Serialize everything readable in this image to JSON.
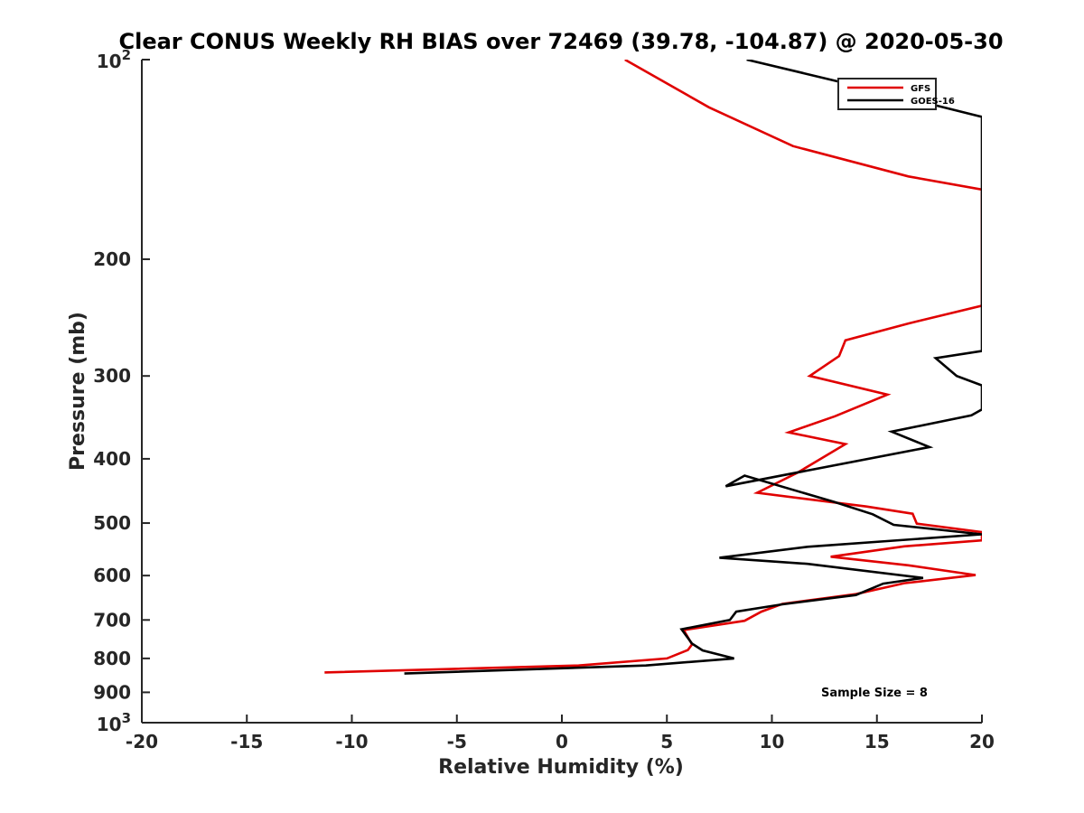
{
  "chart_data": {
    "type": "line",
    "title": "Clear CONUS Weekly RH BIAS over 72469 (39.78, -104.87) @ 2020-05-30",
    "xlabel": "Relative Humidity (%)",
    "ylabel": "Pressure (mb)",
    "xlim": [
      -20,
      20
    ],
    "ylim": [
      100,
      1000
    ],
    "yscale": "log",
    "y_reversed": true,
    "x_ticks": [
      "-20",
      "-15",
      "-10",
      "-5",
      "0",
      "5",
      "10",
      "15",
      "20"
    ],
    "y_ticks": [
      {
        "value": 100,
        "base": "10",
        "exp": "2"
      },
      {
        "value": 200,
        "label": "200"
      },
      {
        "value": 300,
        "label": "300"
      },
      {
        "value": 400,
        "label": "400"
      },
      {
        "value": 500,
        "label": "500"
      },
      {
        "value": 600,
        "label": "600"
      },
      {
        "value": 700,
        "label": "700"
      },
      {
        "value": 800,
        "label": "800"
      },
      {
        "value": 900,
        "label": "900"
      },
      {
        "value": 1000,
        "base": "10",
        "exp": "3"
      }
    ],
    "legend_position": "top-right",
    "grid": false,
    "annotation": "Sample Size = 8",
    "series": [
      {
        "name": "GFS",
        "color": "#e00000",
        "points": [
          [
            3.0,
            100
          ],
          [
            7.0,
            118
          ],
          [
            11.0,
            135
          ],
          [
            16.5,
            150
          ],
          [
            20.0,
            157
          ],
          [
            20.0,
            235
          ],
          [
            16.5,
            250
          ],
          [
            13.5,
            265
          ],
          [
            13.2,
            280
          ],
          [
            11.8,
            300
          ],
          [
            15.5,
            320
          ],
          [
            13.0,
            345
          ],
          [
            10.8,
            365
          ],
          [
            13.5,
            380
          ],
          [
            11.2,
            420
          ],
          [
            9.3,
            450
          ],
          [
            14.5,
            472
          ],
          [
            16.7,
            484
          ],
          [
            16.9,
            501
          ],
          [
            20.0,
            516
          ],
          [
            20.0,
            531
          ],
          [
            16.3,
            542
          ],
          [
            12.8,
            562
          ],
          [
            16.5,
            579
          ],
          [
            19.7,
            599
          ],
          [
            16.3,
            616
          ],
          [
            14.0,
            640
          ],
          [
            10.5,
            662
          ],
          [
            9.5,
            680
          ],
          [
            8.7,
            702
          ],
          [
            5.8,
            725
          ],
          [
            6.2,
            762
          ],
          [
            6.0,
            777
          ],
          [
            5.0,
            800
          ],
          [
            0.8,
            820
          ],
          [
            -11.3,
            840
          ]
        ]
      },
      {
        "name": "GOES-16",
        "color": "#000000",
        "points": [
          [
            8.8,
            100
          ],
          [
            15.3,
            112
          ],
          [
            20.0,
            122
          ],
          [
            20.0,
            275
          ],
          [
            17.8,
            282
          ],
          [
            18.8,
            300
          ],
          [
            20.0,
            310
          ],
          [
            20.0,
            337
          ],
          [
            19.5,
            344
          ],
          [
            15.7,
            364
          ],
          [
            17.5,
            384
          ],
          [
            7.8,
            440
          ],
          [
            8.7,
            424
          ],
          [
            13.0,
            465
          ],
          [
            14.8,
            485
          ],
          [
            15.8,
            503
          ],
          [
            20.0,
            520
          ],
          [
            11.7,
            543
          ],
          [
            7.5,
            564
          ],
          [
            11.7,
            576
          ],
          [
            17.2,
            605
          ],
          [
            15.3,
            617
          ],
          [
            14.0,
            642
          ],
          [
            10.5,
            663
          ],
          [
            8.3,
            680
          ],
          [
            8.0,
            700
          ],
          [
            5.7,
            723
          ],
          [
            6.2,
            760
          ],
          [
            6.7,
            778
          ],
          [
            8.2,
            800
          ],
          [
            4.0,
            820
          ],
          [
            -7.5,
            843
          ]
        ]
      }
    ]
  }
}
